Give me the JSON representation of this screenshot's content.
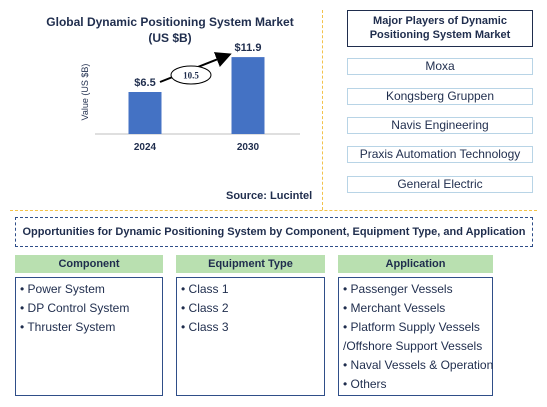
{
  "chart_data": {
    "type": "bar",
    "title": "Global Dynamic Positioning System Market (US $B)",
    "categories": [
      "2024",
      "2030"
    ],
    "values": [
      6.5,
      11.9
    ],
    "value_labels": [
      "$6.5",
      "$11.9"
    ],
    "ylabel": "Value (US $B)",
    "xlabel": "",
    "cagr_label": "10.5",
    "bar_color": "#4472c4",
    "ylim": [
      0,
      13
    ]
  },
  "source": "Source: Lucintel",
  "players": {
    "title": "Major Players of Dynamic Positioning System Market",
    "items": [
      "Moxa",
      "Kongsberg Gruppen",
      "Navis Engineering",
      "Praxis Automation Technology",
      "General Electric"
    ]
  },
  "opportunities": {
    "banner": "Opportunities for Dynamic Positioning System by Component, Equipment Type, and Application",
    "columns": [
      {
        "header": "Component",
        "items": [
          "• Power System",
          "• DP Control System",
          "• Thruster System"
        ]
      },
      {
        "header": "Equipment Type",
        "items": [
          "• Class 1",
          "• Class 2",
          "• Class 3"
        ]
      },
      {
        "header": "Application",
        "items": [
          "• Passenger Vessels",
          "• Merchant Vessels",
          "• Platform Supply Vessels",
          "/Offshore Support Vessels",
          "• Naval Vessels & Operation",
          "• Others"
        ]
      }
    ]
  }
}
